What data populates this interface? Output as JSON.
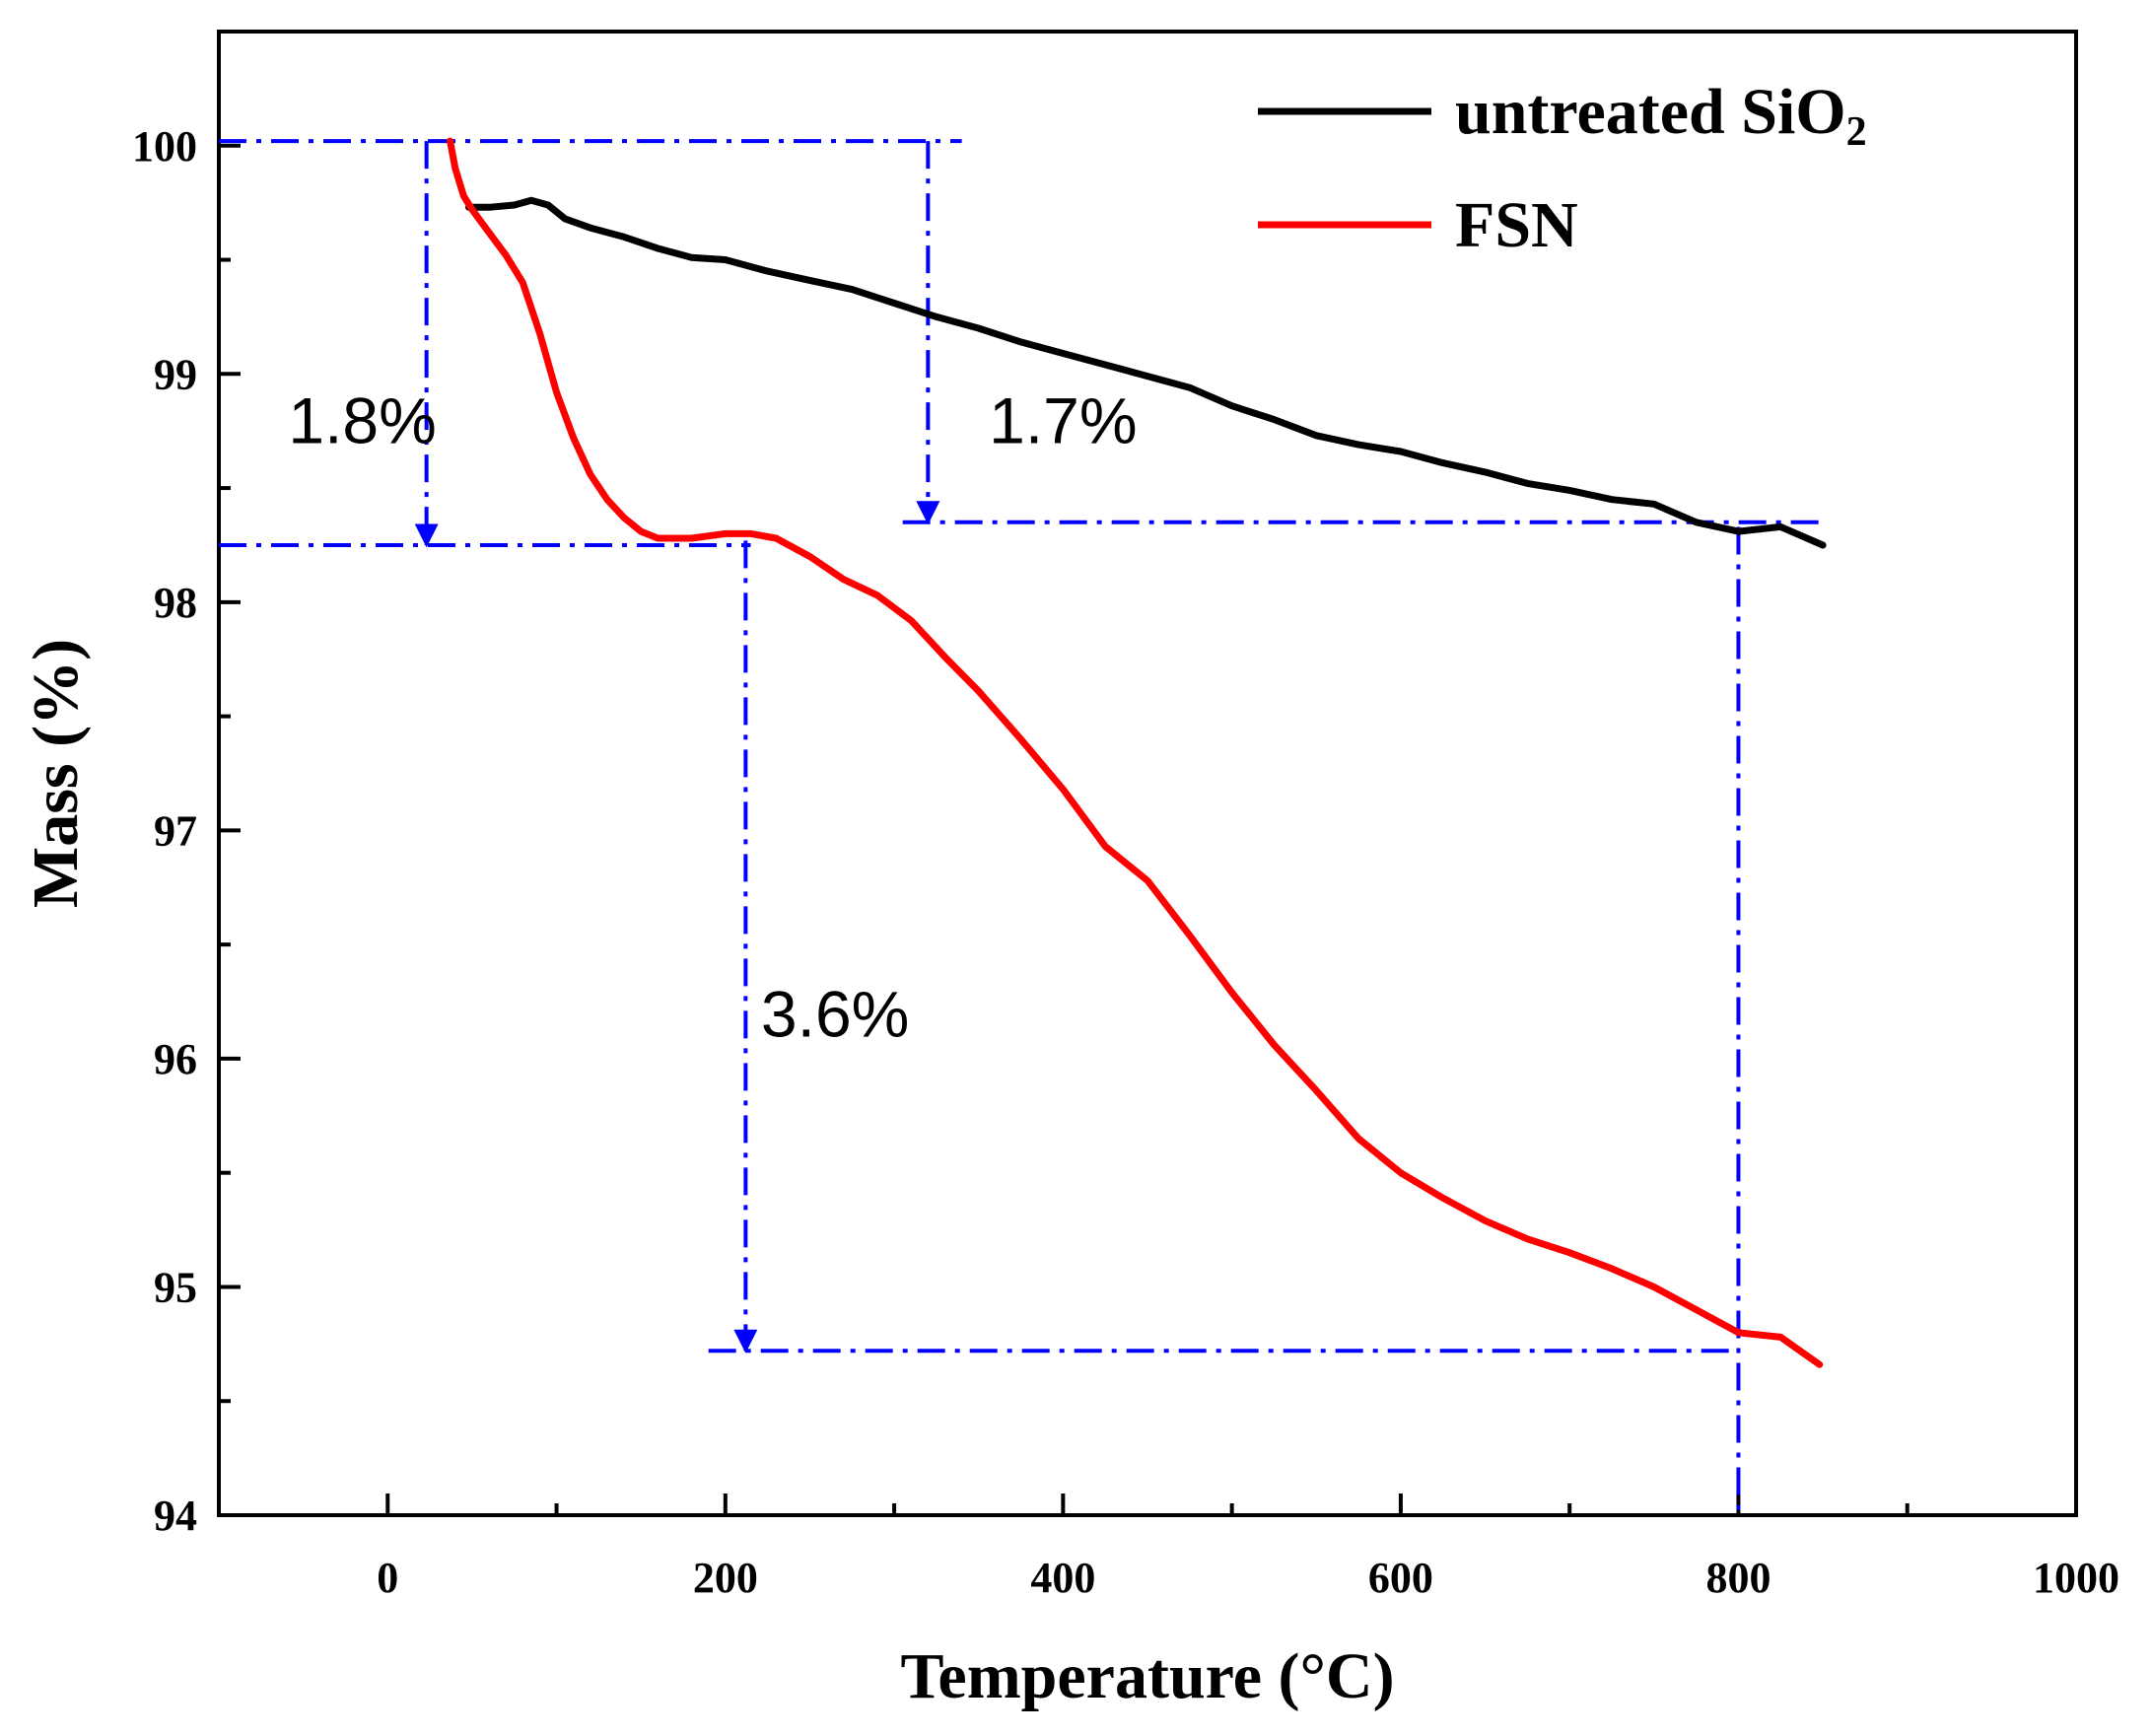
{
  "chart_data": {
    "type": "line",
    "title": "",
    "xlabel": "Temperature (°C)",
    "ylabel": "Mass (%)",
    "xlim": [
      -100,
      1000
    ],
    "ylim": [
      94,
      100.5
    ],
    "xticks": [
      0,
      200,
      400,
      600,
      800,
      1000
    ],
    "yticks": [
      94,
      95,
      96,
      97,
      98,
      99,
      100
    ],
    "grid": false,
    "legend_position": "top-right",
    "series": [
      {
        "name": "untreated SiO2",
        "legend_main": "untreated SiO",
        "legend_sub": "2",
        "color": "#000000",
        "x": [
          48,
          60,
          75,
          85,
          95,
          105,
          120,
          140,
          160,
          180,
          200,
          225,
          250,
          275,
          300,
          325,
          350,
          375,
          400,
          425,
          450,
          475,
          500,
          525,
          550,
          575,
          600,
          625,
          650,
          675,
          700,
          725,
          750,
          775,
          800,
          825,
          850
        ],
        "y": [
          99.73,
          99.73,
          99.74,
          99.76,
          99.74,
          99.68,
          99.64,
          99.6,
          99.55,
          99.51,
          99.5,
          99.45,
          99.41,
          99.37,
          99.31,
          99.25,
          99.2,
          99.14,
          99.09,
          99.04,
          98.99,
          98.94,
          98.86,
          98.8,
          98.73,
          98.69,
          98.66,
          98.61,
          98.57,
          98.52,
          98.49,
          98.45,
          98.43,
          98.35,
          98.31,
          98.33,
          98.25
        ]
      },
      {
        "name": "FSN",
        "legend_main": "FSN",
        "legend_sub": "",
        "color": "#ff0000",
        "x": [
          37,
          40,
          45,
          50,
          60,
          70,
          80,
          90,
          100,
          110,
          120,
          130,
          140,
          150,
          160,
          170,
          180,
          190,
          200,
          215,
          230,
          250,
          270,
          290,
          310,
          330,
          350,
          375,
          400,
          425,
          450,
          475,
          500,
          525,
          550,
          575,
          600,
          625,
          650,
          675,
          700,
          725,
          750,
          775,
          800,
          825,
          848
        ],
        "y": [
          100.02,
          99.9,
          99.78,
          99.72,
          99.62,
          99.52,
          99.4,
          99.18,
          98.92,
          98.72,
          98.56,
          98.45,
          98.37,
          98.31,
          98.28,
          98.28,
          98.28,
          98.29,
          98.3,
          98.3,
          98.28,
          98.2,
          98.1,
          98.03,
          97.92,
          97.76,
          97.61,
          97.4,
          97.18,
          96.93,
          96.78,
          96.54,
          96.29,
          96.06,
          95.86,
          95.65,
          95.5,
          95.39,
          95.29,
          95.21,
          95.15,
          95.08,
          95.0,
          94.9,
          94.8,
          94.78,
          94.66
        ]
      }
    ],
    "annotations": [
      {
        "text": "1.8%",
        "x": -15,
        "y": 98.8
      },
      {
        "text": "1.7%",
        "x": 400,
        "y": 98.8
      },
      {
        "text": "3.6%",
        "x": 265,
        "y": 96.2
      }
    ],
    "guide_lines": {
      "color": "#0000ff",
      "horizontal": [
        {
          "x1": -100,
          "x2": 340,
          "y": 100.02
        },
        {
          "x1": -100,
          "x2": 215,
          "y": 98.25
        },
        {
          "x1": 305,
          "x2": 850,
          "y": 98.35
        },
        {
          "x1": 190,
          "x2": 800,
          "y": 94.72
        }
      ],
      "vertical": [
        {
          "x": 800,
          "y1": 98.33,
          "y2": 94.0
        }
      ],
      "arrows": [
        {
          "x": 23,
          "y1": 100.02,
          "y2": 98.25
        },
        {
          "x": 320,
          "y1": 100.02,
          "y2": 98.35
        },
        {
          "x": 212,
          "y1": 98.27,
          "y2": 94.72
        }
      ]
    }
  }
}
